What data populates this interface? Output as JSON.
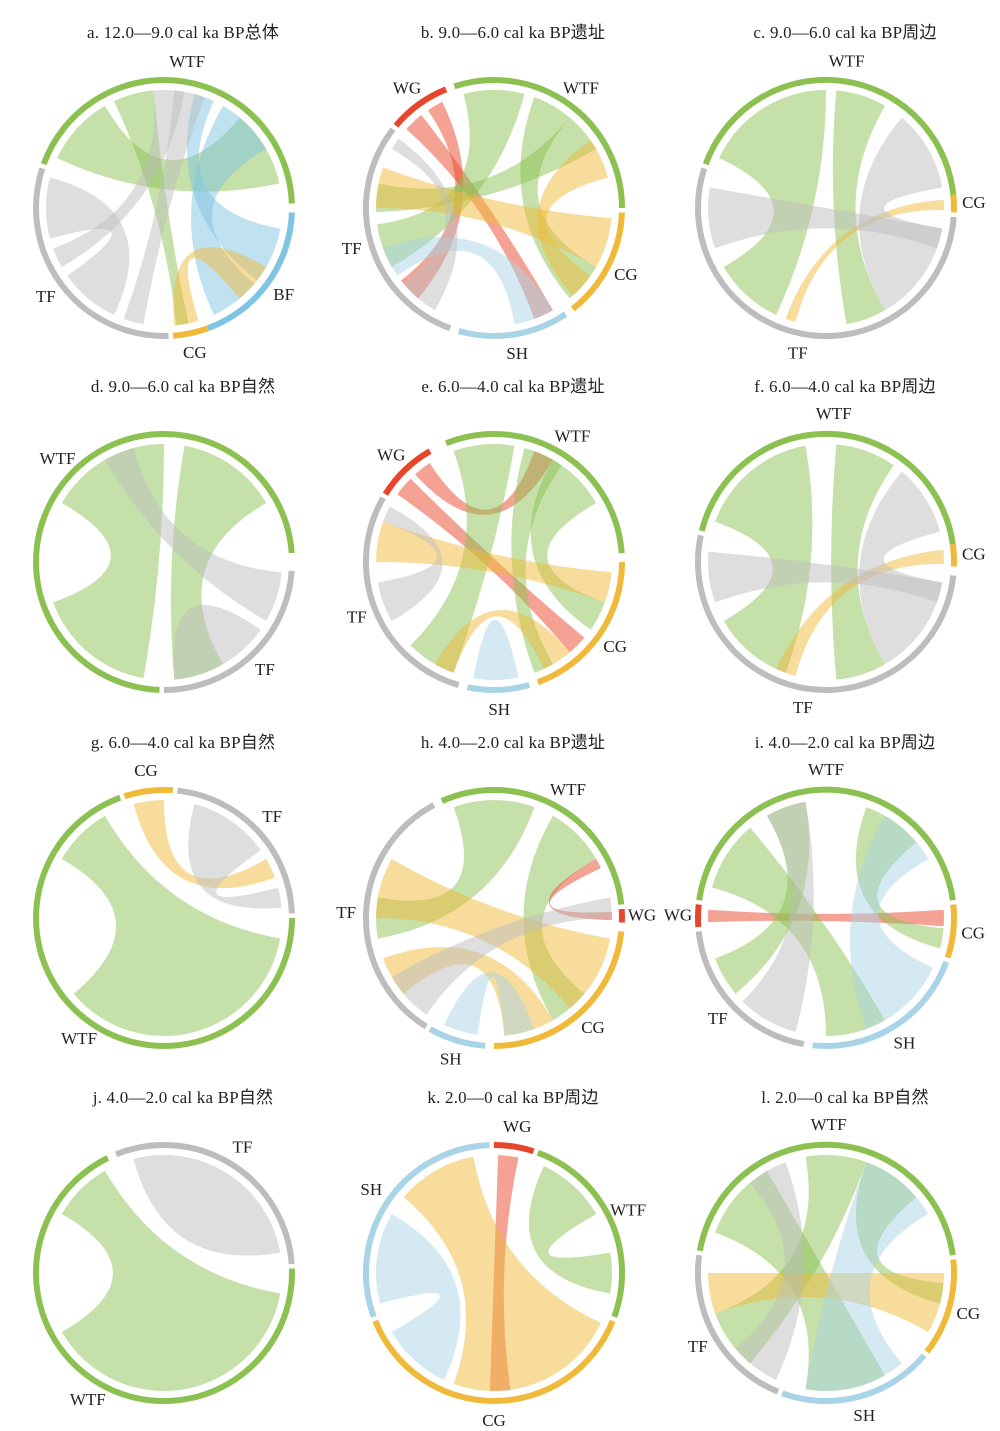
{
  "colors": {
    "WTF": "#8cc152",
    "TF": "#bdbdbd",
    "CG": "#f0b93a",
    "BF": "#7fc4e2",
    "SH": "#a9d3e6",
    "WG": "#e8462a"
  },
  "panels": [
    {
      "title": "a. 12.0—9.0 cal ka BP总体",
      "groups": [
        {
          "label": "WTF",
          "color": "WTF",
          "start": 290,
          "end": 448
        },
        {
          "label": "BF",
          "color": "BF",
          "start": 92,
          "end": 160
        },
        {
          "label": "CG",
          "color": "CG",
          "start": 160,
          "end": 176
        },
        {
          "label": "TF",
          "color": "TF",
          "start": 178,
          "end": 288
        }
      ],
      "ribbons": [
        [
          295,
          330,
          40,
          78,
          "WTF"
        ],
        [
          335,
          355,
          168,
          174,
          "WTF"
        ],
        [
          15,
          25,
          100,
          128,
          "BF"
        ],
        [
          30,
          60,
          130,
          155,
          "BF"
        ],
        [
          163,
          175,
          120,
          140,
          "CG"
        ],
        [
          205,
          235,
          255,
          285,
          "TF"
        ],
        [
          240,
          250,
          355,
          370,
          "TF"
        ],
        [
          190,
          200,
          5,
          20,
          "TF"
        ]
      ]
    },
    {
      "title": "b. 9.0—6.0 cal ka BP遗址",
      "groups": [
        {
          "label": "WTF",
          "color": "WTF",
          "start": 342,
          "end": 450
        },
        {
          "label": "CG",
          "color": "CG",
          "start": 92,
          "end": 142
        },
        {
          "label": "SH",
          "color": "SH",
          "start": 146,
          "end": 196
        },
        {
          "label": "TF",
          "color": "TF",
          "start": 200,
          "end": 308
        },
        {
          "label": "WG",
          "color": "WG",
          "start": 310,
          "end": 338
        }
      ],
      "ribbons": [
        [
          312,
          322,
          150,
          160,
          "WG"
        ],
        [
          326,
          334,
          220,
          232,
          "WG"
        ],
        [
          345,
          375,
          240,
          262,
          "WTF"
        ],
        [
          380,
          400,
          120,
          140,
          "WTF"
        ],
        [
          40,
          60,
          268,
          282,
          "WTF"
        ],
        [
          95,
          120,
          270,
          290,
          "CG"
        ],
        [
          125,
          138,
          55,
          75,
          "CG"
        ],
        [
          150,
          170,
          235,
          250,
          "SH"
        ],
        [
          210,
          230,
          300,
          306,
          "TF"
        ]
      ]
    },
    {
      "title": "c. 9.0—6.0 cal ka BP周边",
      "groups": [
        {
          "label": "WTF",
          "color": "WTF",
          "start": 290,
          "end": 446
        },
        {
          "label": "CG",
          "color": "CG",
          "start": 84,
          "end": 92
        },
        {
          "label": "TF",
          "color": "TF",
          "start": 94,
          "end": 288
        }
      ],
      "ribbons": [
        [
          295,
          360,
          205,
          240,
          "WTF"
        ],
        [
          5,
          30,
          150,
          170,
          "WTF"
        ],
        [
          86,
          91,
          195,
          200,
          "CG"
        ],
        [
          100,
          150,
          40,
          80,
          "TF"
        ],
        [
          250,
          280,
          100,
          110,
          "TF"
        ]
      ]
    },
    {
      "title": "d. 9.0—6.0 cal ka BP自然",
      "groups": [
        {
          "label": "WTF",
          "color": "WTF",
          "start": 182,
          "end": 446
        },
        {
          "label": "TF",
          "color": "TF",
          "start": 94,
          "end": 180
        }
      ],
      "ribbons": [
        [
          190,
          250,
          300,
          360,
          "WTF"
        ],
        [
          10,
          60,
          150,
          175,
          "WTF"
        ],
        [
          95,
          120,
          330,
          345,
          "TF"
        ],
        [
          125,
          160,
          150,
          175,
          "TF"
        ]
      ]
    },
    {
      "title": "e. 6.0—4.0 cal ka BP遗址",
      "groups": [
        {
          "label": "WTF",
          "color": "WTF",
          "start": 338,
          "end": 446
        },
        {
          "label": "CG",
          "color": "CG",
          "start": 90,
          "end": 160
        },
        {
          "label": "SH",
          "color": "SH",
          "start": 164,
          "end": 192
        },
        {
          "label": "TF",
          "color": "TF",
          "start": 196,
          "end": 300
        },
        {
          "label": "WG",
          "color": "WG",
          "start": 302,
          "end": 330
        }
      ],
      "ribbons": [
        [
          305,
          315,
          130,
          140,
          "WG"
        ],
        [
          318,
          327,
          20,
          30,
          "WG"
        ],
        [
          340,
          370,
          200,
          225,
          "WTF"
        ],
        [
          375,
          395,
          150,
          160,
          "WTF"
        ],
        [
          30,
          60,
          110,
          125,
          "WTF"
        ],
        [
          95,
          110,
          270,
          290,
          "CG"
        ],
        [
          140,
          155,
          200,
          210,
          "CG"
        ],
        [
          168,
          188,
          175,
          190,
          "SH"
        ],
        [
          240,
          260,
          290,
          298,
          "TF"
        ]
      ]
    },
    {
      "title": "f. 6.0—4.0 cal ka BP周边",
      "groups": [
        {
          "label": "WTF",
          "color": "WTF",
          "start": 284,
          "end": 442
        },
        {
          "label": "CG",
          "color": "CG",
          "start": 82,
          "end": 92
        },
        {
          "label": "TF",
          "color": "TF",
          "start": 96,
          "end": 282
        }
      ],
      "ribbons": [
        [
          290,
          350,
          200,
          240,
          "WTF"
        ],
        [
          5,
          35,
          150,
          175,
          "WTF"
        ],
        [
          84,
          91,
          195,
          205,
          "CG"
        ],
        [
          100,
          150,
          40,
          75,
          "TF"
        ],
        [
          250,
          275,
          100,
          110,
          "TF"
        ]
      ]
    },
    {
      "title": "g. 6.0—4.0 cal ka BP自然",
      "groups": [
        {
          "label": "WTF",
          "color": "WTF",
          "start": 90,
          "end": 340
        },
        {
          "label": "CG",
          "color": "CG",
          "start": 342,
          "end": 364
        },
        {
          "label": "TF",
          "color": "TF",
          "start": 6,
          "end": 88
        }
      ],
      "ribbons": [
        [
          100,
          230,
          300,
          330,
          "WTF"
        ],
        [
          345,
          360,
          60,
          70,
          "CG"
        ],
        [
          15,
          55,
          75,
          85,
          "TF"
        ]
      ]
    },
    {
      "title": "h. 4.0—2.0 cal ka BP遗址",
      "groups": [
        {
          "label": "WTF",
          "color": "WTF",
          "start": 336,
          "end": 444
        },
        {
          "label": "WG",
          "color": "WG",
          "start": 86,
          "end": 92
        },
        {
          "label": "CG",
          "color": "CG",
          "start": 96,
          "end": 180
        },
        {
          "label": "SH",
          "color": "SH",
          "start": 184,
          "end": 210
        },
        {
          "label": "TF",
          "color": "TF",
          "start": 212,
          "end": 332
        }
      ],
      "ribbons": [
        [
          340,
          380,
          260,
          280,
          "WTF"
        ],
        [
          30,
          60,
          130,
          150,
          "WTF"
        ],
        [
          87,
          91,
          60,
          65,
          "WG"
        ],
        [
          100,
          140,
          270,
          300,
          "CG"
        ],
        [
          150,
          175,
          230,
          250,
          "CG"
        ],
        [
          188,
          205,
          160,
          175,
          "SH"
        ],
        [
          215,
          240,
          80,
          90,
          "TF"
        ]
      ]
    },
    {
      "title": "i. 4.0—2.0 cal ka BP周边",
      "groups": [
        {
          "label": "WTF",
          "color": "WTF",
          "start": 278,
          "end": 442
        },
        {
          "label": "CG",
          "color": "CG",
          "start": 84,
          "end": 108
        },
        {
          "label": "SH",
          "color": "SH",
          "start": 110,
          "end": 186
        },
        {
          "label": "TF",
          "color": "TF",
          "start": 190,
          "end": 264
        },
        {
          "label": "WG",
          "color": "WG",
          "start": 266,
          "end": 276
        }
      ],
      "ribbons": [
        [
          268,
          274,
          86,
          94,
          "WG"
        ],
        [
          285,
          320,
          150,
          180,
          "WTF"
        ],
        [
          330,
          350,
          230,
          250,
          "WTF"
        ],
        [
          20,
          50,
          95,
          105,
          "WTF"
        ],
        [
          115,
          160,
          30,
          60,
          "SH"
        ],
        [
          195,
          225,
          330,
          350,
          "TF"
        ]
      ]
    },
    {
      "title": "j. 4.0—2.0 cal ka BP自然",
      "groups": [
        {
          "label": "WTF",
          "color": "WTF",
          "start": 88,
          "end": 334
        },
        {
          "label": "TF",
          "color": "TF",
          "start": 338,
          "end": 446
        }
      ],
      "ribbons": [
        [
          100,
          240,
          300,
          330,
          "WTF"
        ],
        [
          345,
          400,
          40,
          80,
          "TF"
        ]
      ]
    },
    {
      "title": "k. 2.0—0 cal ka BP周边",
      "groups": [
        {
          "label": "WG",
          "color": "WG",
          "start": 0,
          "end": 18
        },
        {
          "label": "WTF",
          "color": "WTF",
          "start": 20,
          "end": 110
        },
        {
          "label": "CG",
          "color": "CG",
          "start": 112,
          "end": 248
        },
        {
          "label": "SH",
          "color": "SH",
          "start": 250,
          "end": 358
        }
      ],
      "ribbons": [
        [
          2,
          12,
          172,
          182,
          "WG"
        ],
        [
          25,
          60,
          80,
          100,
          "WTF"
        ],
        [
          115,
          200,
          310,
          350,
          "CG"
        ],
        [
          255,
          300,
          205,
          240,
          "SH"
        ]
      ]
    },
    {
      "title": "l. 2.0—0 cal ka BP自然",
      "groups": [
        {
          "label": "WTF",
          "color": "WTF",
          "start": 280,
          "end": 442
        },
        {
          "label": "CG",
          "color": "CG",
          "start": 84,
          "end": 128
        },
        {
          "label": "SH",
          "color": "SH",
          "start": 130,
          "end": 200
        },
        {
          "label": "TF",
          "color": "TF",
          "start": 202,
          "end": 278
        }
      ],
      "ribbons": [
        [
          290,
          330,
          150,
          190,
          "WTF"
        ],
        [
          350,
          380,
          220,
          250,
          "WTF"
        ],
        [
          20,
          50,
          95,
          105,
          "WTF"
        ],
        [
          90,
          120,
          250,
          270,
          "CG"
        ],
        [
          140,
          190,
          20,
          60,
          "SH"
        ],
        [
          205,
          230,
          320,
          340,
          "TF"
        ]
      ]
    }
  ]
}
